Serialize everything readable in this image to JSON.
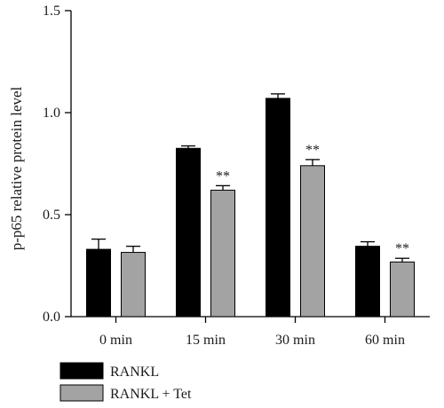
{
  "chart_data": {
    "type": "bar",
    "categories": [
      "0 min",
      "15 min",
      "30 min",
      "60 min"
    ],
    "series": [
      {
        "name": "RANKL",
        "color": "#000000",
        "values": [
          0.33,
          0.825,
          1.07,
          0.345
        ],
        "errors": [
          0.05,
          0.012,
          0.022,
          0.022
        ],
        "annotations": [
          "",
          "",
          "",
          ""
        ]
      },
      {
        "name": "RANKL + Tet",
        "color": "#a3a3a3",
        "values": [
          0.315,
          0.62,
          0.74,
          0.268
        ],
        "errors": [
          0.03,
          0.022,
          0.03,
          0.018
        ],
        "annotations": [
          "",
          "**",
          "**",
          "**"
        ]
      }
    ],
    "xlabel": "",
    "ylabel": "p-p65 relative protein level",
    "ylim": [
      0,
      1.5
    ],
    "yticks": [
      "0.0",
      "0.5",
      "1.0",
      "1.5"
    ],
    "grid": false,
    "legend_position": "bottom-left"
  }
}
